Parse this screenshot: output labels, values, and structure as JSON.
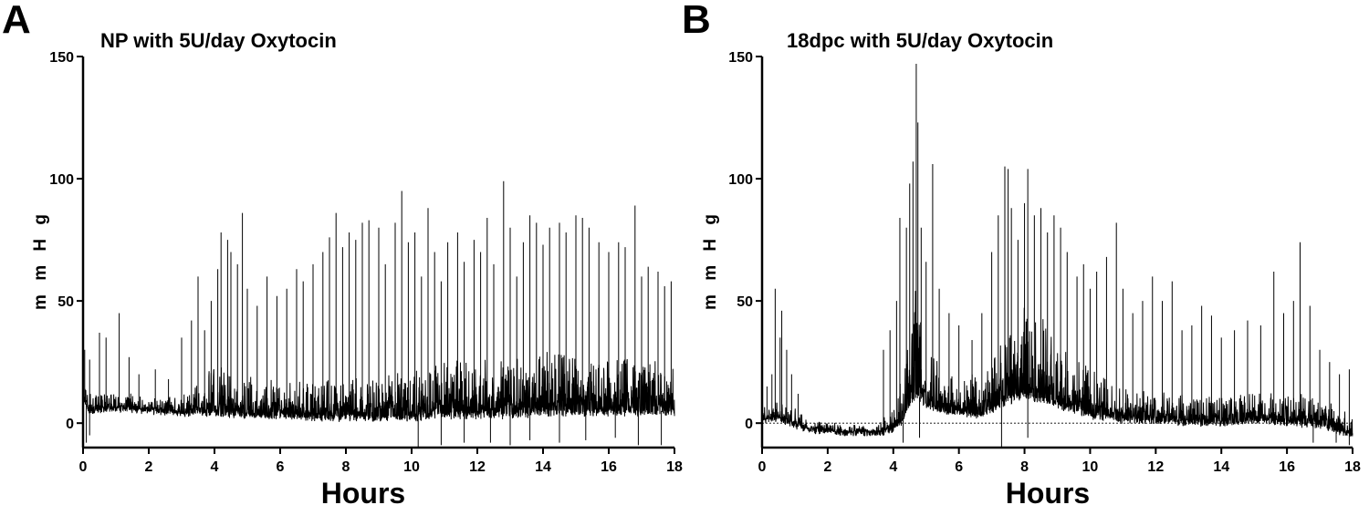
{
  "chart_data": [
    {
      "type": "line",
      "panel_label": "A",
      "title": "NP with 5U/day Oxytocin",
      "xlabel": "Hours",
      "ylabel": "m m  H g",
      "xlim": [
        0,
        18
      ],
      "ylim": [
        -10,
        150
      ],
      "xticks": [
        0,
        2,
        4,
        6,
        8,
        10,
        12,
        14,
        16,
        18
      ],
      "yticks": [
        0,
        50,
        100,
        150
      ],
      "baseline": null,
      "series": [
        {
          "baseline_points": [
            [
              0,
              12
            ],
            [
              0.15,
              6
            ],
            [
              1,
              7
            ],
            [
              2,
              6
            ],
            [
              3,
              5
            ],
            [
              4,
              5
            ],
            [
              5,
              4
            ],
            [
              6,
              4
            ],
            [
              7,
              3
            ],
            [
              8,
              3
            ],
            [
              9,
              3
            ],
            [
              10,
              3
            ],
            [
              11,
              4
            ],
            [
              12,
              4
            ],
            [
              13,
              4
            ],
            [
              14,
              5
            ],
            [
              15,
              5
            ],
            [
              16,
              5
            ],
            [
              17,
              5
            ],
            [
              18,
              5
            ]
          ],
          "noise_envelope": [
            [
              0,
              4
            ],
            [
              3,
              4
            ],
            [
              3.5,
              8
            ],
            [
              4,
              12
            ],
            [
              5,
              10
            ],
            [
              6,
              8
            ],
            [
              7,
              10
            ],
            [
              8,
              10
            ],
            [
              9,
              11
            ],
            [
              10,
              13
            ],
            [
              11,
              14
            ],
            [
              12,
              14
            ],
            [
              13,
              15
            ],
            [
              14,
              16
            ],
            [
              15,
              15
            ],
            [
              16,
              14
            ],
            [
              17,
              14
            ],
            [
              18,
              13
            ]
          ],
          "peaks": [
            [
              0.05,
              30
            ],
            [
              0.2,
              26
            ],
            [
              0.5,
              37
            ],
            [
              0.7,
              35
            ],
            [
              1.1,
              45
            ],
            [
              1.4,
              27
            ],
            [
              1.7,
              20
            ],
            [
              2.2,
              22
            ],
            [
              2.6,
              18
            ],
            [
              3.0,
              35
            ],
            [
              3.3,
              42
            ],
            [
              3.5,
              60
            ],
            [
              3.7,
              38
            ],
            [
              3.9,
              50
            ],
            [
              4.1,
              63
            ],
            [
              4.2,
              78
            ],
            [
              4.4,
              75
            ],
            [
              4.5,
              70
            ],
            [
              4.7,
              65
            ],
            [
              4.85,
              86
            ],
            [
              5.0,
              55
            ],
            [
              5.3,
              48
            ],
            [
              5.6,
              60
            ],
            [
              5.9,
              52
            ],
            [
              6.2,
              55
            ],
            [
              6.5,
              63
            ],
            [
              6.7,
              58
            ],
            [
              7.0,
              65
            ],
            [
              7.3,
              70
            ],
            [
              7.5,
              76
            ],
            [
              7.7,
              86
            ],
            [
              7.9,
              72
            ],
            [
              8.1,
              78
            ],
            [
              8.3,
              75
            ],
            [
              8.5,
              82
            ],
            [
              8.7,
              83
            ],
            [
              9.0,
              80
            ],
            [
              9.2,
              65
            ],
            [
              9.5,
              82
            ],
            [
              9.7,
              95
            ],
            [
              9.9,
              74
            ],
            [
              10.1,
              78
            ],
            [
              10.3,
              60
            ],
            [
              10.5,
              88
            ],
            [
              10.7,
              70
            ],
            [
              10.9,
              58
            ],
            [
              11.1,
              74
            ],
            [
              11.4,
              78
            ],
            [
              11.6,
              66
            ],
            [
              11.9,
              75
            ],
            [
              12.1,
              70
            ],
            [
              12.3,
              84
            ],
            [
              12.5,
              65
            ],
            [
              12.8,
              99
            ],
            [
              13.0,
              80
            ],
            [
              13.2,
              60
            ],
            [
              13.4,
              74
            ],
            [
              13.6,
              85
            ],
            [
              13.8,
              82
            ],
            [
              14.0,
              73
            ],
            [
              14.2,
              80
            ],
            [
              14.5,
              82
            ],
            [
              14.7,
              78
            ],
            [
              15.0,
              85
            ],
            [
              15.2,
              84
            ],
            [
              15.4,
              80
            ],
            [
              15.7,
              74
            ],
            [
              16.0,
              70
            ],
            [
              16.3,
              74
            ],
            [
              16.5,
              72
            ],
            [
              16.8,
              89
            ],
            [
              17.0,
              60
            ],
            [
              17.2,
              64
            ],
            [
              17.5,
              62
            ],
            [
              17.7,
              56
            ],
            [
              17.9,
              58
            ]
          ],
          "dips": [
            [
              0.1,
              -8
            ],
            [
              0.2,
              -5
            ],
            [
              10.2,
              -10
            ],
            [
              10.9,
              -9
            ],
            [
              11.6,
              -8
            ],
            [
              12.4,
              -8
            ],
            [
              13.0,
              -9
            ],
            [
              13.6,
              -7
            ],
            [
              14.5,
              -8
            ],
            [
              15.3,
              -7
            ],
            [
              16.2,
              -6
            ],
            [
              16.9,
              -9
            ],
            [
              17.6,
              -9
            ]
          ]
        }
      ]
    },
    {
      "type": "line",
      "panel_label": "B",
      "title": "18dpc with 5U/day Oxytocin",
      "xlabel": "Hours",
      "ylabel": "m m  H g",
      "xlim": [
        0,
        18
      ],
      "ylim": [
        -10,
        150
      ],
      "xticks": [
        0,
        2,
        4,
        6,
        8,
        10,
        12,
        14,
        16,
        18
      ],
      "yticks": [
        0,
        50,
        100,
        150
      ],
      "baseline": 0,
      "series": [
        {
          "baseline_points": [
            [
              0,
              2
            ],
            [
              0.5,
              3
            ],
            [
              1,
              0
            ],
            [
              1.5,
              -2
            ],
            [
              2,
              -2
            ],
            [
              2.5,
              -3
            ],
            [
              3,
              -3
            ],
            [
              3.5,
              -3
            ],
            [
              4,
              -2
            ],
            [
              4.3,
              2
            ],
            [
              4.5,
              8
            ],
            [
              4.7,
              12
            ],
            [
              5,
              8
            ],
            [
              5.5,
              6
            ],
            [
              6,
              5
            ],
            [
              6.5,
              4
            ],
            [
              7,
              6
            ],
            [
              7.5,
              10
            ],
            [
              8,
              12
            ],
            [
              8.5,
              10
            ],
            [
              9,
              8
            ],
            [
              9.5,
              6
            ],
            [
              10,
              4
            ],
            [
              11,
              2
            ],
            [
              12,
              2
            ],
            [
              13,
              1
            ],
            [
              14,
              1
            ],
            [
              15,
              2
            ],
            [
              16,
              1
            ],
            [
              17,
              0
            ],
            [
              18,
              -4
            ]
          ],
          "noise_envelope": [
            [
              0,
              6
            ],
            [
              1,
              4
            ],
            [
              1.5,
              2
            ],
            [
              3.5,
              2
            ],
            [
              4,
              6
            ],
            [
              4.5,
              20
            ],
            [
              4.7,
              30
            ],
            [
              5,
              15
            ],
            [
              6,
              8
            ],
            [
              7,
              14
            ],
            [
              7.5,
              20
            ],
            [
              8,
              24
            ],
            [
              8.5,
              22
            ],
            [
              9,
              18
            ],
            [
              10,
              12
            ],
            [
              11,
              9
            ],
            [
              12,
              7
            ],
            [
              13,
              7
            ],
            [
              14,
              7
            ],
            [
              15,
              8
            ],
            [
              16,
              8
            ],
            [
              17,
              7
            ],
            [
              18,
              5
            ]
          ],
          "peaks": [
            [
              0.15,
              15
            ],
            [
              0.3,
              20
            ],
            [
              0.4,
              55
            ],
            [
              0.55,
              35
            ],
            [
              0.6,
              46
            ],
            [
              0.75,
              30
            ],
            [
              0.9,
              20
            ],
            [
              1.1,
              12
            ],
            [
              3.7,
              30
            ],
            [
              3.9,
              38
            ],
            [
              4.1,
              50
            ],
            [
              4.2,
              84
            ],
            [
              4.4,
              80
            ],
            [
              4.5,
              98
            ],
            [
              4.6,
              107
            ],
            [
              4.7,
              147
            ],
            [
              4.75,
              123
            ],
            [
              4.85,
              80
            ],
            [
              5.0,
              66
            ],
            [
              5.2,
              106
            ],
            [
              5.4,
              55
            ],
            [
              5.7,
              45
            ],
            [
              6.0,
              40
            ],
            [
              6.4,
              34
            ],
            [
              6.7,
              45
            ],
            [
              7.0,
              70
            ],
            [
              7.2,
              85
            ],
            [
              7.4,
              105
            ],
            [
              7.5,
              104
            ],
            [
              7.6,
              88
            ],
            [
              7.8,
              75
            ],
            [
              8.0,
              90
            ],
            [
              8.1,
              104
            ],
            [
              8.3,
              85
            ],
            [
              8.5,
              88
            ],
            [
              8.7,
              78
            ],
            [
              8.9,
              85
            ],
            [
              9.1,
              80
            ],
            [
              9.3,
              70
            ],
            [
              9.6,
              60
            ],
            [
              9.8,
              65
            ],
            [
              10.0,
              55
            ],
            [
              10.2,
              62
            ],
            [
              10.5,
              68
            ],
            [
              10.8,
              82
            ],
            [
              11.0,
              55
            ],
            [
              11.3,
              45
            ],
            [
              11.6,
              50
            ],
            [
              11.9,
              60
            ],
            [
              12.2,
              50
            ],
            [
              12.5,
              58
            ],
            [
              12.8,
              38
            ],
            [
              13.1,
              40
            ],
            [
              13.4,
              48
            ],
            [
              13.7,
              44
            ],
            [
              14.0,
              35
            ],
            [
              14.4,
              38
            ],
            [
              14.8,
              42
            ],
            [
              15.2,
              40
            ],
            [
              15.6,
              62
            ],
            [
              15.9,
              45
            ],
            [
              16.2,
              50
            ],
            [
              16.4,
              74
            ],
            [
              16.7,
              48
            ],
            [
              17.0,
              30
            ],
            [
              17.3,
              25
            ],
            [
              17.6,
              20
            ],
            [
              17.9,
              22
            ]
          ],
          "dips": [
            [
              4.3,
              -8
            ],
            [
              4.8,
              -6
            ],
            [
              7.3,
              -10
            ],
            [
              8.1,
              -6
            ],
            [
              16.8,
              -8
            ],
            [
              17.5,
              -8
            ],
            [
              17.9,
              -9
            ]
          ]
        }
      ]
    }
  ]
}
